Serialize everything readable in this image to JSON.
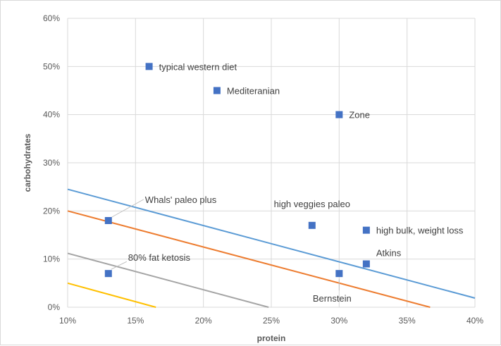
{
  "chart_data": {
    "type": "scatter",
    "xlabel": "protein",
    "ylabel": "carbohydrates",
    "xlim": [
      0.1,
      0.4
    ],
    "ylim": [
      0,
      0.6
    ],
    "x_ticks": [
      0.1,
      0.15,
      0.2,
      0.25,
      0.3,
      0.35,
      0.4
    ],
    "x_tick_labels": [
      "10%",
      "15%",
      "20%",
      "25%",
      "30%",
      "35%",
      "40%"
    ],
    "y_ticks": [
      0,
      0.1,
      0.2,
      0.3,
      0.4,
      0.5,
      0.6
    ],
    "y_tick_labels": [
      "0%",
      "10%",
      "20%",
      "30%",
      "40%",
      "50%",
      "60%"
    ],
    "grid": true,
    "marker_color": "#4472c4",
    "points": [
      {
        "label": "typical western diet",
        "x": 0.16,
        "y": 0.5
      },
      {
        "label": "Mediteranian",
        "x": 0.21,
        "y": 0.45
      },
      {
        "label": "Zone",
        "x": 0.3,
        "y": 0.4
      },
      {
        "label": "Whals' paleo plus",
        "x": 0.13,
        "y": 0.18
      },
      {
        "label": "high veggies paleo",
        "x": 0.28,
        "y": 0.17
      },
      {
        "label": "high bulk, weight loss",
        "x": 0.32,
        "y": 0.16
      },
      {
        "label": "Atkins",
        "x": 0.32,
        "y": 0.09
      },
      {
        "label": "80% fat ketosis",
        "x": 0.13,
        "y": 0.07
      },
      {
        "label": "Bernstein",
        "x": 0.3,
        "y": 0.07
      }
    ],
    "lines": [
      {
        "color": "#5b9bd5",
        "x": [
          0.1,
          0.4
        ],
        "y": [
          0.245,
          0.019
        ]
      },
      {
        "color": "#ed7d31",
        "x": [
          0.1,
          0.367
        ],
        "y": [
          0.2,
          0.0
        ]
      },
      {
        "color": "#a5a5a5",
        "x": [
          0.1,
          0.248
        ],
        "y": [
          0.112,
          0.0
        ]
      },
      {
        "color": "#ffc000",
        "x": [
          0.1,
          0.165
        ],
        "y": [
          0.05,
          0.0
        ]
      }
    ]
  }
}
